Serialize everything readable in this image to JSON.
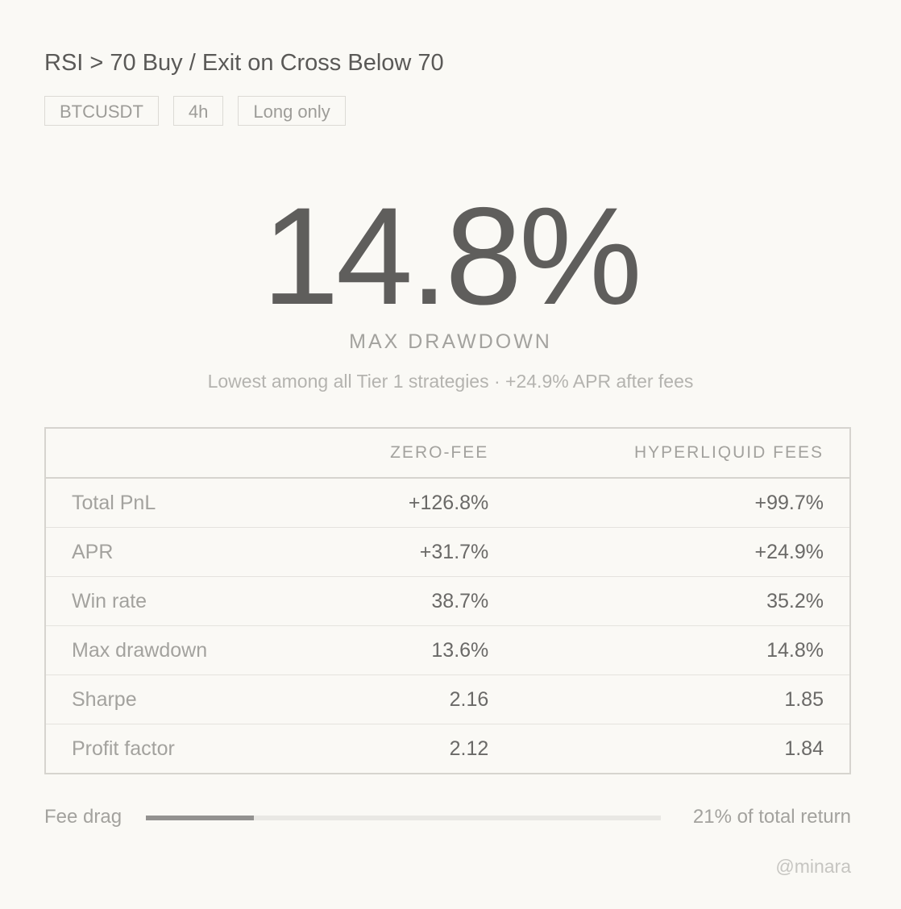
{
  "title": "RSI > 70 Buy / Exit on Cross Below 70",
  "tags": [
    "BTCUSDT",
    "4h",
    "Long only"
  ],
  "headline": {
    "value": "14.8%",
    "label": "MAX DRAWDOWN",
    "subtitle": "Lowest among all Tier 1 strategies · +24.9% APR after fees"
  },
  "table": {
    "headers": [
      "",
      "ZERO-FEE",
      "HYPERLIQUID FEES"
    ],
    "rows": [
      {
        "label": "Total PnL",
        "zero_fee": "+126.8%",
        "hyperliquid": "+99.7%"
      },
      {
        "label": "APR",
        "zero_fee": "+31.7%",
        "hyperliquid": "+24.9%"
      },
      {
        "label": "Win rate",
        "zero_fee": "38.7%",
        "hyperliquid": "35.2%"
      },
      {
        "label": "Max drawdown",
        "zero_fee": "13.6%",
        "hyperliquid": "14.8%"
      },
      {
        "label": "Sharpe",
        "zero_fee": "2.16",
        "hyperliquid": "1.85"
      },
      {
        "label": "Profit factor",
        "zero_fee": "2.12",
        "hyperliquid": "1.84"
      }
    ]
  },
  "fee_drag": {
    "label": "Fee drag",
    "percent": 21,
    "value_text": "21% of total return"
  },
  "handle": "@minara"
}
